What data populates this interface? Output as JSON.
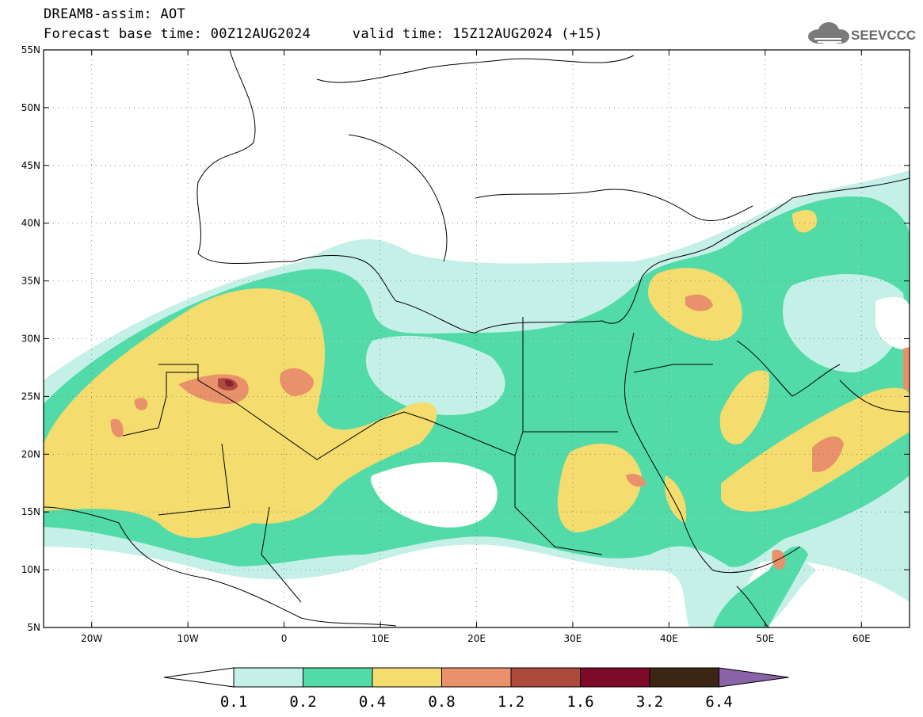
{
  "header": {
    "line1": "DREAM8-assim: AOT",
    "line2": "Forecast base time: 00Z12AUG2024     valid time: 15Z12AUG2024 (+15)",
    "logo_text": "SEEVCCC",
    "logo_icon": "cloud-icon"
  },
  "map": {
    "lon_range": [
      -25,
      65
    ],
    "lat_range": [
      5,
      55
    ],
    "lon_ticks": [
      {
        "value": -20,
        "label": "20W"
      },
      {
        "value": -10,
        "label": "10W"
      },
      {
        "value": 0,
        "label": "0"
      },
      {
        "value": 10,
        "label": "10E"
      },
      {
        "value": 20,
        "label": "20E"
      },
      {
        "value": 30,
        "label": "30E"
      },
      {
        "value": 40,
        "label": "40E"
      },
      {
        "value": 50,
        "label": "50E"
      },
      {
        "value": 60,
        "label": "60E"
      }
    ],
    "lat_ticks": [
      {
        "value": 55,
        "label": "55N"
      },
      {
        "value": 50,
        "label": "50N"
      },
      {
        "value": 45,
        "label": "45N"
      },
      {
        "value": 40,
        "label": "40N"
      },
      {
        "value": 35,
        "label": "35N"
      },
      {
        "value": 30,
        "label": "30N"
      },
      {
        "value": 25,
        "label": "25N"
      },
      {
        "value": 20,
        "label": "20N"
      },
      {
        "value": 15,
        "label": "15N"
      },
      {
        "value": 10,
        "label": "10N"
      },
      {
        "value": 5,
        "label": "5N"
      }
    ],
    "grid": "dotted",
    "field_colors": {
      "low": "#c5f0e8",
      "mid": "#52dba8",
      "yellow": "#f4dc6e",
      "orange": "#e8916a",
      "red": "#ad4a3c",
      "dark": "#8a2030"
    }
  },
  "colorbar": {
    "labels": [
      "0.1",
      "0.2",
      "0.4",
      "0.8",
      "1.2",
      "1.6",
      "3.2",
      "6.4"
    ],
    "colors": [
      "#ffffff",
      "#c5f0e8",
      "#52dba8",
      "#f4dc6e",
      "#e8916a",
      "#ad4a3c",
      "#7e0a2a",
      "#3b2614",
      "#8a63a8"
    ]
  }
}
